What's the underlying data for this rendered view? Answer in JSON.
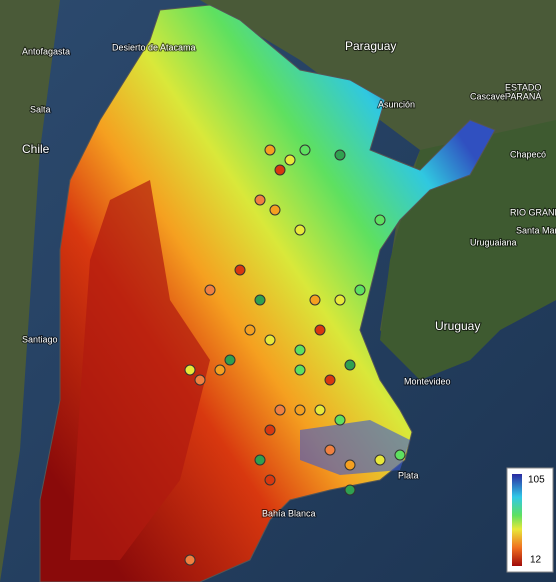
{
  "map": {
    "labels": [
      "Paraguay",
      "Asunción",
      "ESTADO",
      "PARANÁ",
      "Chile",
      "Santiago",
      "Uruguay",
      "Montevideo",
      "RIO GRANDE DO SUL",
      "Antofagasta",
      "Desierto de Atacama",
      "Salta",
      "Cascavel",
      "Chapecó",
      "Santa Maria",
      "Uruguaiana",
      "Plata",
      "Bahía Blanca"
    ],
    "colorbar": {
      "max": 105,
      "min": 12
    }
  }
}
